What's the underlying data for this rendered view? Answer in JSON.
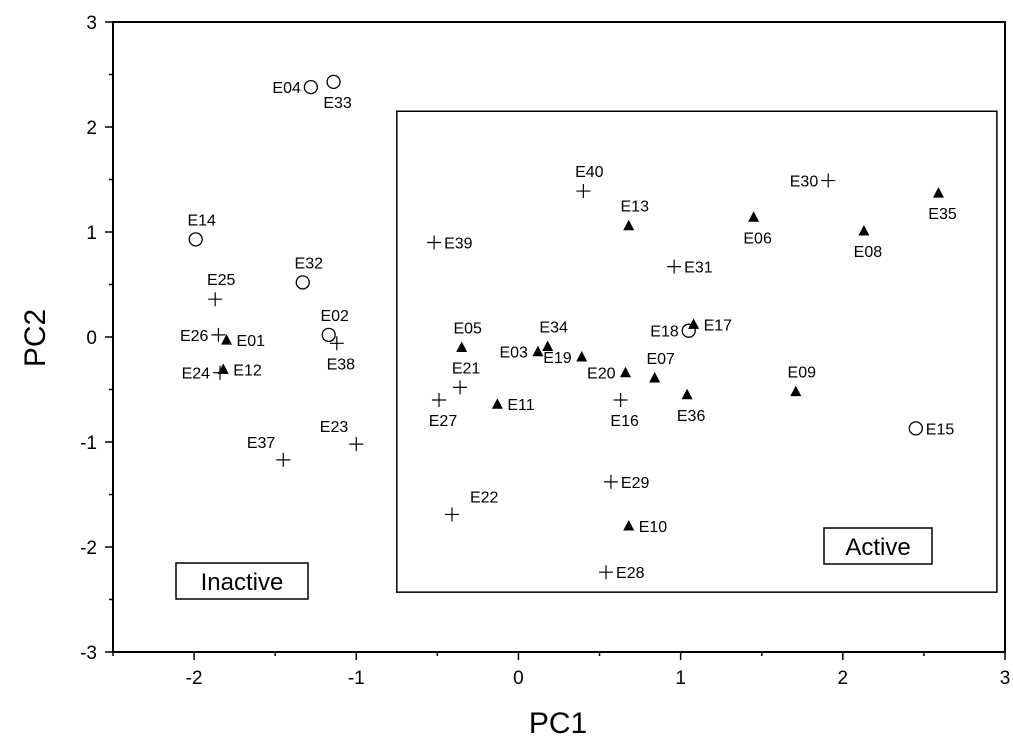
{
  "chart_data": {
    "type": "scatter",
    "xlabel": "PC1",
    "ylabel": "PC2",
    "xlim": [
      -2.5,
      3
    ],
    "ylim": [
      -3,
      3
    ],
    "x_ticks": [
      -2,
      -1,
      0,
      1,
      2,
      3
    ],
    "y_ticks": [
      -3,
      -2,
      -1,
      0,
      1,
      2,
      3
    ],
    "marker_styles": [
      "circle-open",
      "triangle-filled",
      "plus"
    ],
    "regions": [
      {
        "label": "Active",
        "x0": -0.75,
        "x1": 2.95,
        "y0": -2.43,
        "y1": 2.15,
        "label_pos": "bottom-right"
      },
      {
        "label": "Inactive",
        "label_pos": "bottom-left"
      }
    ],
    "points": [
      {
        "label": "E04",
        "x": -1.28,
        "y": 2.38,
        "marker": "circle-open",
        "lp": "l"
      },
      {
        "label": "E33",
        "x": -1.14,
        "y": 2.43,
        "marker": "circle-open",
        "lp": "b"
      },
      {
        "label": "E14",
        "x": -1.99,
        "y": 0.93,
        "marker": "circle-open",
        "lp": "t"
      },
      {
        "label": "E32",
        "x": -1.33,
        "y": 0.52,
        "marker": "circle-open",
        "lp": "t"
      },
      {
        "label": "E02",
        "x": -1.17,
        "y": 0.02,
        "marker": "circle-open",
        "lp": "t"
      },
      {
        "label": "E18",
        "x": 1.05,
        "y": 0.06,
        "marker": "circle-open",
        "lp": "l"
      },
      {
        "label": "E15",
        "x": 2.45,
        "y": -0.87,
        "marker": "circle-open",
        "lp": "r"
      },
      {
        "label": "E01",
        "x": -1.8,
        "y": -0.03,
        "marker": "triangle-filled",
        "lp": "r"
      },
      {
        "label": "E12",
        "x": -1.82,
        "y": -0.31,
        "marker": "triangle-filled",
        "lp": "r"
      },
      {
        "label": "E05",
        "x": -0.35,
        "y": -0.1,
        "marker": "triangle-filled",
        "lp": "t"
      },
      {
        "label": "E03",
        "x": 0.12,
        "y": -0.14,
        "marker": "triangle-filled",
        "lp": "l"
      },
      {
        "label": "E34",
        "x": 0.18,
        "y": -0.09,
        "marker": "triangle-filled",
        "lp": "t"
      },
      {
        "label": "E19",
        "x": 0.39,
        "y": -0.19,
        "marker": "triangle-filled",
        "lp": "l"
      },
      {
        "label": "E11",
        "x": -0.13,
        "y": -0.64,
        "marker": "triangle-filled",
        "lp": "r"
      },
      {
        "label": "E20",
        "x": 0.66,
        "y": -0.34,
        "marker": "triangle-filled",
        "lp": "l"
      },
      {
        "label": "E07",
        "x": 0.84,
        "y": -0.39,
        "marker": "triangle-filled",
        "lp": "t"
      },
      {
        "label": "E36",
        "x": 1.04,
        "y": -0.55,
        "marker": "triangle-filled",
        "lp": "b"
      },
      {
        "label": "E17",
        "x": 1.08,
        "y": 0.12,
        "marker": "triangle-filled",
        "lp": "r"
      },
      {
        "label": "E13",
        "x": 0.68,
        "y": 1.06,
        "marker": "triangle-filled",
        "lp": "t"
      },
      {
        "label": "E06",
        "x": 1.45,
        "y": 1.14,
        "marker": "triangle-filled",
        "lp": "b"
      },
      {
        "label": "E08",
        "x": 2.13,
        "y": 1.01,
        "marker": "triangle-filled",
        "lp": "b"
      },
      {
        "label": "E35",
        "x": 2.59,
        "y": 1.37,
        "marker": "triangle-filled",
        "lp": "b"
      },
      {
        "label": "E09",
        "x": 1.71,
        "y": -0.52,
        "marker": "triangle-filled",
        "lp": "t"
      },
      {
        "label": "E10",
        "x": 0.68,
        "y": -1.8,
        "marker": "triangle-filled",
        "lp": "r"
      },
      {
        "label": "E40",
        "x": 0.4,
        "y": 1.39,
        "marker": "plus",
        "lp": "t"
      },
      {
        "label": "E39",
        "x": -0.52,
        "y": 0.9,
        "marker": "plus",
        "lp": "r"
      },
      {
        "label": "E31",
        "x": 0.96,
        "y": 0.67,
        "marker": "plus",
        "lp": "r"
      },
      {
        "label": "E30",
        "x": 1.91,
        "y": 1.49,
        "marker": "plus",
        "lp": "l"
      },
      {
        "label": "E25",
        "x": -1.87,
        "y": 0.36,
        "marker": "plus",
        "lp": "t"
      },
      {
        "label": "E26",
        "x": -1.85,
        "y": 0.02,
        "marker": "plus",
        "lp": "l"
      },
      {
        "label": "E24",
        "x": -1.84,
        "y": -0.34,
        "marker": "plus",
        "lp": "l"
      },
      {
        "label": "E38",
        "x": -1.12,
        "y": -0.06,
        "marker": "plus",
        "lp": "b"
      },
      {
        "label": "E21",
        "x": -0.36,
        "y": -0.48,
        "marker": "plus",
        "lp": "t"
      },
      {
        "label": "E27",
        "x": -0.49,
        "y": -0.6,
        "marker": "plus",
        "lp": "b"
      },
      {
        "label": "E16",
        "x": 0.63,
        "y": -0.6,
        "marker": "plus",
        "lp": "b",
        "hidden": true
      },
      {
        "label": "E37",
        "x": -1.45,
        "y": -1.17,
        "marker": "plus",
        "lp": "tl"
      },
      {
        "label": "E23",
        "x": -1.0,
        "y": -1.02,
        "marker": "plus",
        "lp": "tl"
      },
      {
        "label": "E22",
        "x": -0.41,
        "y": -1.69,
        "marker": "plus",
        "lp": "tr"
      },
      {
        "label": "E29",
        "x": 0.57,
        "y": -1.38,
        "marker": "plus",
        "lp": "r"
      },
      {
        "label": "E28",
        "x": 0.54,
        "y": -2.24,
        "marker": "plus",
        "lp": "r"
      }
    ]
  }
}
